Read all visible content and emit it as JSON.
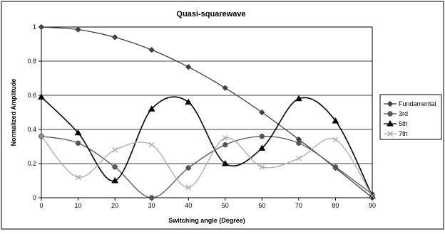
{
  "chart_data": {
    "type": "line",
    "title": "Quasi-squarewave",
    "xlabel": "Switching angle (Degree)",
    "ylabel": "Normalized Amplitude",
    "x": [
      0,
      10,
      20,
      30,
      40,
      50,
      60,
      70,
      80,
      90
    ],
    "xlim": [
      0,
      90
    ],
    "ylim": [
      0,
      1
    ],
    "x_ticks": [
      "0",
      "10",
      "20",
      "30",
      "40",
      "50",
      "60",
      "70",
      "80",
      "90"
    ],
    "y_ticks": [
      "0",
      "0.2",
      "0.4",
      "0.6",
      "0.8",
      "1"
    ],
    "grid": "horizontal",
    "legend_position": "right",
    "series": [
      {
        "name": "Fundamental",
        "marker": "diamond",
        "color": "#404040",
        "values": [
          1.0,
          0.985,
          0.94,
          0.866,
          0.766,
          0.643,
          0.5,
          0.342,
          0.174,
          0.0
        ]
      },
      {
        "name": "3rd",
        "marker": "circle",
        "color": "#555555",
        "values": [
          0.36,
          0.32,
          0.18,
          0.0,
          0.175,
          0.31,
          0.36,
          0.32,
          0.18,
          0.02
        ]
      },
      {
        "name": "5th",
        "marker": "triangle",
        "color": "#000000",
        "values": [
          0.59,
          0.38,
          0.1,
          0.52,
          0.56,
          0.2,
          0.29,
          0.58,
          0.45,
          0.01
        ]
      },
      {
        "name": "7th",
        "marker": "cross",
        "color": "#aaaaaa",
        "values": [
          0.36,
          0.12,
          0.28,
          0.31,
          0.06,
          0.35,
          0.18,
          0.23,
          0.34,
          0.01
        ]
      }
    ]
  }
}
